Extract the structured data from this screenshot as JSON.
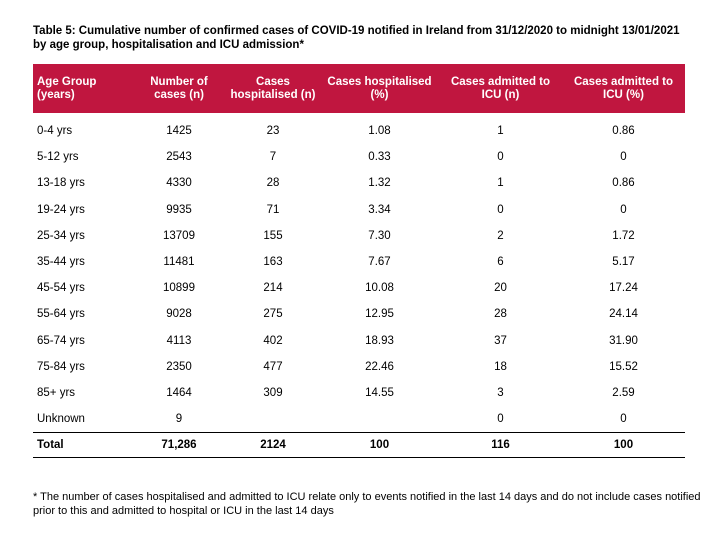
{
  "caption": "Table 5: Cumulative number of confirmed cases of COVID-19 notified in Ireland from 31/12/2020 to midnight 13/01/2021 by age group, hospitalisation and ICU admission*",
  "headers": [
    "Age Group (years)",
    "Number of cases (n)",
    "Cases hospitalised (n)",
    "Cases hospitalised (%)",
    "Cases admitted to ICU (n)",
    "Cases admitted to ICU (%)"
  ],
  "rows": [
    [
      "0-4 yrs",
      "1425",
      "23",
      "1.08",
      "1",
      "0.86"
    ],
    [
      "5-12 yrs",
      "2543",
      "7",
      "0.33",
      "0",
      "0"
    ],
    [
      "13-18 yrs",
      "4330",
      "28",
      "1.32",
      "1",
      "0.86"
    ],
    [
      "19-24 yrs",
      "9935",
      "71",
      "3.34",
      "0",
      "0"
    ],
    [
      "25-34 yrs",
      "13709",
      "155",
      "7.30",
      "2",
      "1.72"
    ],
    [
      "35-44 yrs",
      "11481",
      "163",
      "7.67",
      "6",
      "5.17"
    ],
    [
      "45-54 yrs",
      "10899",
      "214",
      "10.08",
      "20",
      "17.24"
    ],
    [
      "55-64 yrs",
      "9028",
      "275",
      "12.95",
      "28",
      "24.14"
    ],
    [
      "65-74 yrs",
      "4113",
      "402",
      "18.93",
      "37",
      "31.90"
    ],
    [
      "75-84 yrs",
      "2350",
      "477",
      "22.46",
      "18",
      "15.52"
    ],
    [
      "85+ yrs",
      "1464",
      "309",
      "14.55",
      "3",
      "2.59"
    ],
    [
      "Unknown",
      "9",
      "",
      "",
      "0",
      "0"
    ]
  ],
  "total": [
    "Total",
    "71,286",
    "2124",
    "100",
    "116",
    "100"
  ],
  "footnote": "* The number of cases hospitalised and admitted to ICU relate only to events notified in the last 14 days and do not include cases notified prior to this and admitted to hospital or ICU in the last 14 days",
  "colors": {
    "header_bg": "#c0163f",
    "header_text": "#ffffff"
  }
}
